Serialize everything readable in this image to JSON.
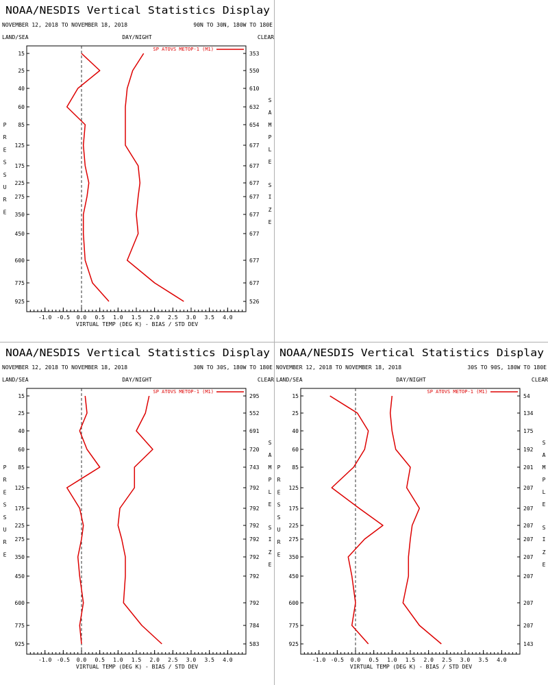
{
  "colors": {
    "line": "#dd0000",
    "axis": "#000000",
    "zero": "#333333"
  },
  "pressure_levels": [
    "15",
    "25",
    "40",
    "60",
    "85",
    "125",
    "175",
    "225",
    "275",
    "350",
    "450",
    "600",
    "775",
    "925"
  ],
  "panels": [
    {
      "title": "NOAA/NESDIS Vertical Statistics Display",
      "date_range": "NOVEMBER 12, 2018 TO NOVEMBER 18, 2018",
      "region": "90N TO 30N, 180W TO 180E",
      "header_left": "LAND/SEA",
      "header_center": "DAY/NIGHT",
      "header_right": "CLEAR",
      "legend": "SP ATOVS METOP-1 (M1)",
      "left_axis_label": "PRESSURE",
      "right_axis_label": "SAMPLE SIZE",
      "x_axis_label": "VIRTUAL TEMP (DEG K) - BIAS / STD DEV",
      "x_ticks": [
        "-1.0",
        "-0.5",
        "0.0",
        "0.5",
        "1.0",
        "1.5",
        "2.0",
        "2.5",
        "3.0",
        "3.5",
        "4.0"
      ],
      "sample_sizes": [
        "353",
        "550",
        "610",
        "632",
        "654",
        "677",
        "677",
        "677",
        "677",
        "677",
        "677",
        "677",
        "677",
        "526"
      ]
    },
    {
      "title": "NOAA/NESDIS Vertical Statistics Display",
      "date_range": "NOVEMBER 12, 2018 TO NOVEMBER 18, 2018",
      "region": "30N TO 30S, 180W TO 180E",
      "header_left": "LAND/SEA",
      "header_center": "DAY/NIGHT",
      "header_right": "CLEAR",
      "legend": "SP ATOVS METOP-1 (M1)",
      "left_axis_label": "PRESSURE",
      "right_axis_label": "SAMPLE SIZE",
      "x_axis_label": "VIRTUAL TEMP (DEG K) - BIAS / STD DEV",
      "x_ticks": [
        "-1.0",
        "-0.5",
        "0.0",
        "0.5",
        "1.0",
        "1.5",
        "2.0",
        "2.5",
        "3.0",
        "3.5",
        "4.0"
      ],
      "sample_sizes": [
        "295",
        "552",
        "691",
        "720",
        "743",
        "792",
        "792",
        "792",
        "792",
        "792",
        "792",
        "792",
        "784",
        "583"
      ]
    },
    {
      "title": "NOAA/NESDIS Vertical Statistics Display",
      "date_range": "NOVEMBER 12, 2018 TO NOVEMBER 18, 2018",
      "region": "30S TO 90S, 180W TO 180E",
      "header_left": "LAND/SEA",
      "header_center": "DAY/NIGHT",
      "header_right": "CLEAR",
      "legend": "SP ATOVS METOP-1 (M1)",
      "left_axis_label": "PRESSURE",
      "right_axis_label": "SAMPLE SIZE",
      "x_axis_label": "VIRTUAL TEMP (DEG K) - BIAS / STD DEV",
      "x_ticks": [
        "-1.0",
        "-0.5",
        "0.0",
        "0.5",
        "1.0",
        "1.5",
        "2.0",
        "2.5",
        "3.0",
        "3.5",
        "4.0"
      ],
      "sample_sizes": [
        "54",
        "134",
        "175",
        "192",
        "201",
        "207",
        "207",
        "207",
        "207",
        "207",
        "207",
        "207",
        "207",
        "143"
      ]
    }
  ],
  "chart_data": [
    {
      "type": "line",
      "xlim": [
        -1.5,
        4.5
      ],
      "y": [
        15,
        25,
        40,
        60,
        85,
        125,
        175,
        225,
        275,
        350,
        450,
        600,
        775,
        925
      ],
      "series": [
        {
          "values": [
            0.0,
            0.5,
            -0.1,
            -0.4,
            0.1,
            0.05,
            0.1,
            0.2,
            0.15,
            0.05,
            0.05,
            0.1,
            0.3,
            0.75
          ]
        },
        {
          "values": [
            1.7,
            1.4,
            1.25,
            1.2,
            1.2,
            1.2,
            1.55,
            1.6,
            1.55,
            1.5,
            1.55,
            1.25,
            2.0,
            2.8
          ]
        }
      ]
    },
    {
      "type": "line",
      "xlim": [
        -1.5,
        4.5
      ],
      "y": [
        15,
        25,
        40,
        60,
        85,
        125,
        175,
        225,
        275,
        350,
        450,
        600,
        775,
        925
      ],
      "series": [
        {
          "values": [
            0.1,
            0.15,
            -0.05,
            0.15,
            0.5,
            -0.4,
            -0.05,
            0.05,
            0.0,
            -0.1,
            -0.05,
            0.05,
            -0.05,
            0.0
          ]
        },
        {
          "values": [
            1.85,
            1.75,
            1.5,
            1.95,
            1.45,
            1.45,
            1.05,
            1.0,
            1.1,
            1.2,
            1.2,
            1.15,
            1.65,
            2.2
          ]
        }
      ]
    },
    {
      "type": "line",
      "xlim": [
        -1.5,
        4.5
      ],
      "y": [
        15,
        25,
        40,
        60,
        85,
        125,
        175,
        225,
        275,
        350,
        450,
        600,
        775,
        925
      ],
      "series": [
        {
          "values": [
            -0.7,
            0.05,
            0.35,
            0.25,
            -0.05,
            -0.65,
            0.1,
            0.75,
            0.25,
            -0.2,
            -0.1,
            0.0,
            -0.1,
            0.35
          ]
        },
        {
          "values": [
            1.0,
            0.95,
            1.0,
            1.1,
            1.5,
            1.4,
            1.75,
            1.55,
            1.5,
            1.45,
            1.45,
            1.3,
            1.75,
            2.35
          ]
        }
      ]
    }
  ]
}
